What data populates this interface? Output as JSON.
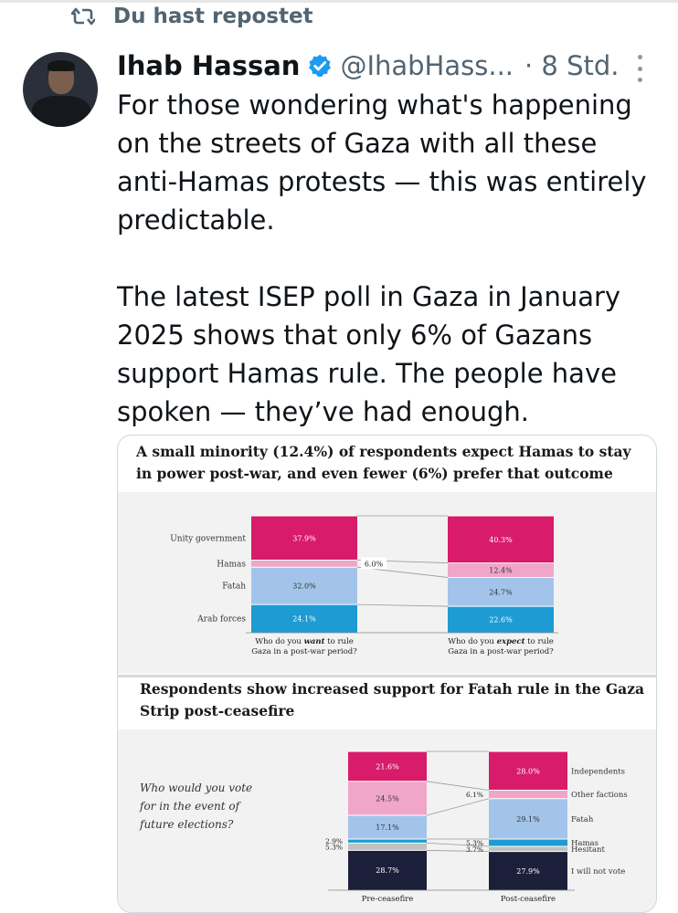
{
  "repost_label": "Du hast repostet",
  "author": {
    "name": "Ihab Hassan",
    "handle": "@IhabHass...",
    "time": "· 8 Std."
  },
  "tweet": {
    "paragraph1": "For those wondering what's happening on the streets of Gaza with all these anti-Hamas protests — this was entirely predictable.",
    "paragraph2": "The latest ISEP poll in Gaza in January 2025 shows that only 6% of Gazans support Hamas rule. The people have spoken — they’ve had enough."
  },
  "icons": {
    "repost": "repost-icon",
    "verified": "verified-badge-icon",
    "more": "more-options-icon"
  },
  "colors": {
    "unity": "#d81b6a",
    "hamas_or_abstain": "#f0a6c8",
    "fatah": "#a3c4ea",
    "arab_forces": "#1e9bd3",
    "hesitant": "#c0c0c0",
    "will_not_vote": "#1c1f3a",
    "verified": "#1d9bf0"
  },
  "chart_data": [
    {
      "type": "bar",
      "stacked": true,
      "title": "A small minority (12.4%) of respondents expect Hamas to stay in power post-war, and even fewer (6%) prefer that outcome",
      "categories": [
        "Who do you want to rule Gaza in a post-war period?",
        "Who do you expect to rule Gaza in a post-war period?"
      ],
      "category_lines": [
        [
          "Who do you ",
          "want",
          " to rule",
          "Gaza in a post-war period?"
        ],
        [
          "Who do you ",
          "expect",
          " to rule",
          "Gaza in a post-war period?"
        ]
      ],
      "series": [
        {
          "name": "Arab forces",
          "values": [
            24.1,
            22.6
          ],
          "labels": [
            "24.1%",
            "22.6%"
          ],
          "color": "#1e9bd3"
        },
        {
          "name": "Fatah",
          "values": [
            32.0,
            24.7
          ],
          "labels": [
            "32.0%",
            "24.7%"
          ],
          "color": "#a3c4ea"
        },
        {
          "name": "Hamas",
          "values": [
            6.0,
            12.4
          ],
          "labels": [
            "6.0%",
            "12.4%"
          ],
          "color": "#f0a6c8"
        },
        {
          "name": "Unity government",
          "values": [
            37.9,
            40.3
          ],
          "labels": [
            "37.9%",
            "40.3%"
          ],
          "color": "#d81b6a"
        }
      ]
    },
    {
      "type": "bar",
      "stacked": true,
      "title": "Respondents show increased support for Fatah rule in the Gaza Strip post-ceasefire",
      "question_lines": [
        "Who would you vote",
        "for in the event of",
        "future elections?"
      ],
      "categories": [
        "Pre-ceasefire",
        "Post-ceasefire"
      ],
      "series": [
        {
          "name": "I will not vote",
          "values": [
            28.7,
            27.9
          ],
          "labels": [
            "28.7%",
            "27.9%"
          ],
          "color": "#1c1f3a"
        },
        {
          "name": "Hesitant",
          "values": [
            5.3,
            3.7
          ],
          "labels": [
            "5.3%",
            "3.7%"
          ],
          "color": "#c0c0c0"
        },
        {
          "name": "Hamas",
          "values": [
            2.9,
            5.3
          ],
          "labels": [
            "2.9%",
            "5.3%"
          ],
          "color": "#1e9bd3"
        },
        {
          "name": "Fatah",
          "values": [
            17.1,
            29.1
          ],
          "labels": [
            "17.1%",
            "29.1%"
          ],
          "color": "#a3c4ea"
        },
        {
          "name": "Other factions",
          "values": [
            24.5,
            6.1
          ],
          "labels": [
            "24.5%",
            "6.1%"
          ],
          "color": "#f0a6c8"
        },
        {
          "name": "Independents",
          "values": [
            21.6,
            28.0
          ],
          "labels": [
            "21.6%",
            "28.0%"
          ],
          "color": "#d81b6a"
        }
      ]
    }
  ]
}
